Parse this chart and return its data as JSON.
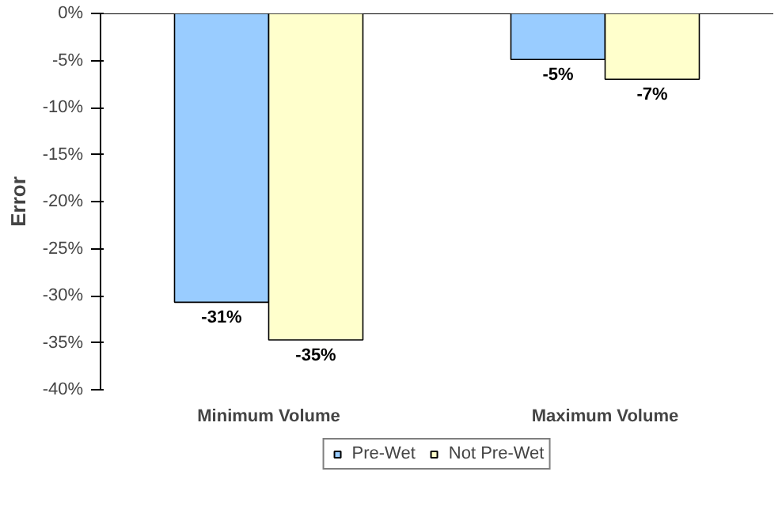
{
  "chart_data": {
    "type": "bar",
    "ylabel": "Error",
    "categories": [
      "Minimum Volume",
      "Maximum Volume"
    ],
    "series": [
      {
        "name": "Pre-Wet",
        "color": "#99ccff",
        "values": [
          -30.7,
          -4.9
        ],
        "value_labels": [
          "-31%",
          "-5%"
        ]
      },
      {
        "name": "Not Pre-Wet",
        "color": "#ffffcc",
        "values": [
          -34.7,
          -7.0
        ],
        "value_labels": [
          "-35%",
          "-7%"
        ]
      }
    ],
    "ylim": [
      -40,
      0
    ],
    "yticks": [
      {
        "value": 0,
        "label": "0%"
      },
      {
        "value": -5,
        "label": "-5%"
      },
      {
        "value": -10,
        "label": "-10%"
      },
      {
        "value": -15,
        "label": "-15%"
      },
      {
        "value": -20,
        "label": "-20%"
      },
      {
        "value": -25,
        "label": "-25%"
      },
      {
        "value": -30,
        "label": "-30%"
      },
      {
        "value": -35,
        "label": "-35%"
      },
      {
        "value": -40,
        "label": "-40%"
      }
    ],
    "grid": false,
    "legend": "bottom"
  }
}
